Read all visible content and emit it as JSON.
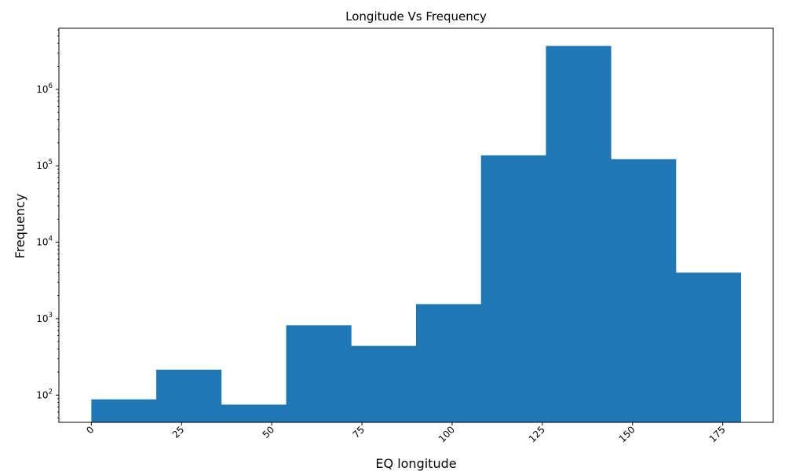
{
  "chart_data": {
    "type": "bar",
    "title": "Longitude Vs Frequency",
    "xlabel": "EQ longitude",
    "ylabel": "Frequency",
    "yscale": "log",
    "bars": [
      {
        "x0": 0,
        "x1": 18,
        "value": 88
      },
      {
        "x0": 18,
        "x1": 36,
        "value": 215
      },
      {
        "x0": 36,
        "x1": 54,
        "value": 75
      },
      {
        "x0": 54,
        "x1": 72,
        "value": 820
      },
      {
        "x0": 72,
        "x1": 90,
        "value": 440
      },
      {
        "x0": 90,
        "x1": 108,
        "value": 1550
      },
      {
        "x0": 108,
        "x1": 126,
        "value": 137000
      },
      {
        "x0": 126,
        "x1": 144,
        "value": 3700000
      },
      {
        "x0": 144,
        "x1": 162,
        "value": 122000
      },
      {
        "x0": 162,
        "x1": 180,
        "value": 4000
      }
    ],
    "xlim": [
      -9,
      189
    ],
    "ylim": [
      44,
      6300000
    ],
    "x_ticks": [
      0,
      25,
      50,
      75,
      100,
      125,
      150,
      175
    ],
    "x_tick_labels": [
      "0",
      "25",
      "50",
      "75",
      "100",
      "125",
      "150",
      "175"
    ],
    "y_ticks": [
      {
        "value": 100,
        "base": "10",
        "exp": "2"
      },
      {
        "value": 1000,
        "base": "10",
        "exp": "3"
      },
      {
        "value": 10000,
        "base": "10",
        "exp": "4"
      },
      {
        "value": 100000,
        "base": "10",
        "exp": "5"
      },
      {
        "value": 1000000,
        "base": "10",
        "exp": "6"
      }
    ],
    "x_tick_rotation": 45,
    "bar_color": "#1f77b4",
    "grid": false,
    "legend": "none"
  }
}
